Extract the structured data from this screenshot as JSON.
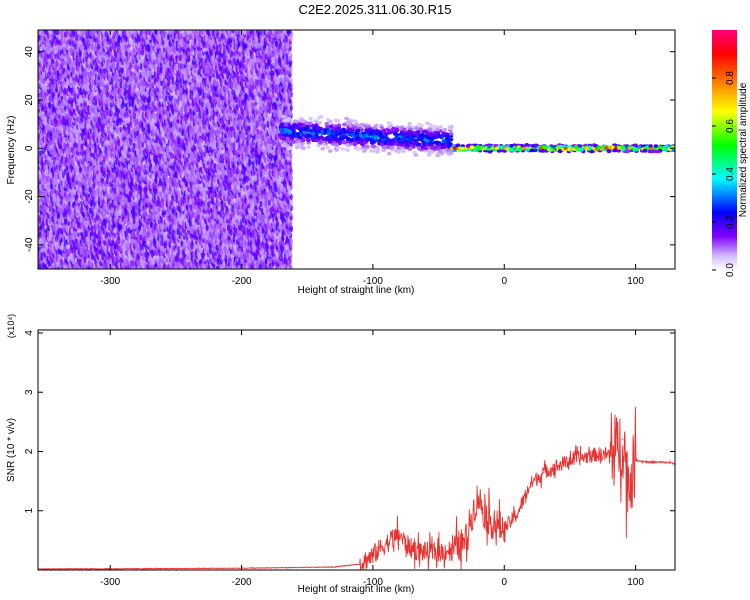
{
  "page": {
    "title": "C2E2.2025.311.06.30.R15"
  },
  "colors": {
    "snr_line": "#e8322f",
    "axis": "#000000"
  },
  "chart_data": [
    {
      "type": "heatmap",
      "xlabel": "Height of straight line (km)",
      "ylabel": "Frequency (Hz)",
      "xlim": [
        -355,
        130
      ],
      "ylim": [
        -50,
        49
      ],
      "x_ticks": [
        -300,
        -200,
        -100,
        0,
        100
      ],
      "y_ticks": [
        -40,
        -20,
        0,
        20,
        40
      ],
      "colorbar": {
        "label": "Normalized spectral amplitude",
        "range": [
          0,
          1
        ],
        "ticks": [
          0.0,
          0.2,
          0.4,
          0.6,
          0.8
        ],
        "tick_labels": [
          "0.0",
          "0.2",
          "0.4",
          "0.6",
          "0.8"
        ],
        "colors": [
          "#ffffff",
          "#8000ff",
          "#0000ff",
          "#00ffff",
          "#00ff00",
          "#ffff00",
          "#ff8000",
          "#ff0000",
          "#ff0080"
        ]
      },
      "regions": [
        {
          "x_range": [
            -355,
            -162
          ],
          "freq_range": [
            -50,
            49
          ],
          "amplitude": 0.1,
          "description": "broadband noise"
        },
        {
          "x_range": [
            -170,
            -40
          ],
          "center_freq": [
            7,
            3
          ],
          "spread_hz": 10,
          "amplitude": 0.3
        },
        {
          "x_range": [
            -40,
            130
          ],
          "center_freq": [
            0,
            0
          ],
          "spread_hz": 2,
          "amplitude": 0.85
        }
      ]
    },
    {
      "type": "line",
      "xlabel": "Height of straight line (km)",
      "ylabel": "SNR (10 * v/v)",
      "y_multiplier_label": "(x10⁴)",
      "xlim": [
        -355,
        130
      ],
      "ylim": [
        0,
        4.05
      ],
      "x_ticks": [
        -300,
        -200,
        -100,
        0,
        100
      ],
      "y_ticks": [
        1,
        2,
        3,
        4
      ],
      "series": [
        {
          "color": "#e8322f",
          "x": [
            -355,
            -300,
            -200,
            -130,
            -110,
            -100,
            -90,
            -80,
            -75,
            -70,
            -60,
            -50,
            -40,
            -30,
            -25,
            -20,
            -15,
            -10,
            -5,
            0,
            10,
            20,
            30,
            40,
            50,
            60,
            70,
            80,
            85,
            90,
            95,
            100,
            110,
            120,
            130
          ],
          "y": [
            0.02,
            0.02,
            0.03,
            0.05,
            0.1,
            0.25,
            0.45,
            0.6,
            0.45,
            0.35,
            0.3,
            0.3,
            0.35,
            0.45,
            0.9,
            1.25,
            0.95,
            0.8,
            0.75,
            0.7,
            0.95,
            1.45,
            1.65,
            1.75,
            1.85,
            1.9,
            1.95,
            1.95,
            2.0,
            2.2,
            1.4,
            1.85,
            1.82,
            1.82,
            1.8
          ]
        }
      ]
    }
  ]
}
